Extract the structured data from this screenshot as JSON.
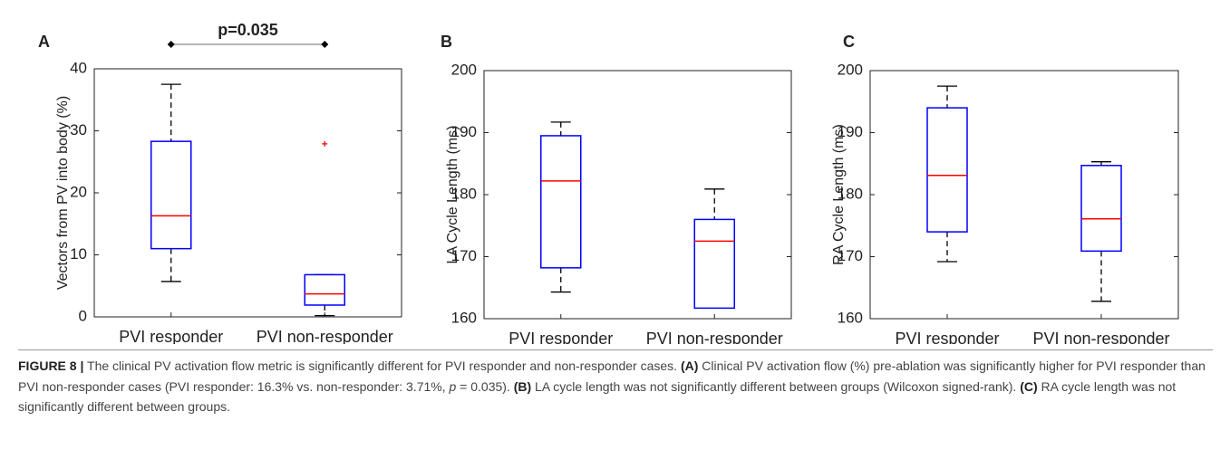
{
  "chart_data": [
    {
      "type": "box",
      "panel": "A",
      "ylabel": "Vectors from PV into body (%)",
      "categories": [
        "PVI responder",
        "PVI non-responder"
      ],
      "boxes": [
        {
          "whisker_low": 5.7,
          "q1": 11,
          "median": 16.3,
          "q3": 28.3,
          "whisker_high": 37.5,
          "outliers": []
        },
        {
          "whisker_low": 0.2,
          "q1": 1.9,
          "median": 3.7,
          "q3": 6.8,
          "whisker_high": 6.8,
          "outliers": [
            27.9
          ]
        }
      ],
      "ylim": [
        0,
        40
      ],
      "yticks": [
        0,
        10,
        20,
        30,
        40
      ],
      "box_color": "#0000ff",
      "median_color": "#ff0000",
      "outlier_color": "#ff0000",
      "annotation": {
        "text": "p=0.035",
        "from": 0,
        "to": 1
      }
    },
    {
      "type": "box",
      "panel": "B",
      "ylabel": "LA Cycle Length (ms)",
      "categories": [
        "PVI responder",
        "PVI non-responder"
      ],
      "boxes": [
        {
          "whisker_low": 164.3,
          "q1": 168.2,
          "median": 182.2,
          "q3": 189.5,
          "whisker_high": 191.7,
          "outliers": []
        },
        {
          "whisker_low": 161.7,
          "q1": 161.7,
          "median": 172.5,
          "q3": 176,
          "whisker_high": 180.9,
          "outliers": []
        }
      ],
      "ylim": [
        160,
        200
      ],
      "yticks": [
        160,
        170,
        180,
        190,
        200
      ],
      "box_color": "#0000ff",
      "median_color": "#ff0000",
      "outlier_color": "#ff0000"
    },
    {
      "type": "box",
      "panel": "C",
      "ylabel": "RA Cycle Length (ms)",
      "categories": [
        "PVI responder",
        "PVI non-responder"
      ],
      "boxes": [
        {
          "whisker_low": 169.2,
          "q1": 174,
          "median": 183.1,
          "q3": 194,
          "whisker_high": 197.5,
          "outliers": []
        },
        {
          "whisker_low": 162.8,
          "q1": 170.9,
          "median": 176.1,
          "q3": 184.7,
          "whisker_high": 185.3,
          "outliers": []
        }
      ],
      "ylim": [
        160,
        200
      ],
      "yticks": [
        160,
        170,
        180,
        190,
        200
      ],
      "box_color": "#0000ff",
      "median_color": "#ff0000",
      "outlier_color": "#ff0000"
    }
  ],
  "caption": [
    {
      "text": "FIGURE 8 |",
      "bold": true
    },
    {
      "text": " The clinical PV activation flow metric is significantly different for PVI responder and non-responder cases. "
    },
    {
      "text": "(A)",
      "bold": true
    },
    {
      "text": " Clinical PV activation flow (%) pre-ablation was significantly higher for PVI responder than PVI non-responder cases (PVI responder: 16.3% vs. non-responder: 3.71%, "
    },
    {
      "text": "p",
      "italic": true
    },
    {
      "text": " = 0.035). "
    },
    {
      "text": "(B)",
      "bold": true
    },
    {
      "text": " LA cycle length was not significantly different between groups (Wilcoxon signed-rank). "
    },
    {
      "text": "(C)",
      "bold": true
    },
    {
      "text": " RA cycle length was not significantly different between groups."
    }
  ]
}
